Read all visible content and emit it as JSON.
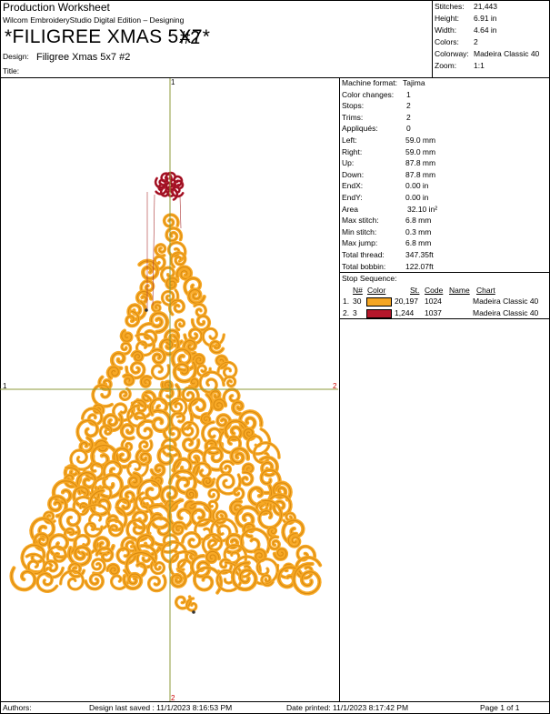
{
  "header": {
    "title": "Production Worksheet",
    "software": "Wilcom EmbroideryStudio Digital Edition – Designing",
    "design_big_name": "*FILIGREE XMAS 5X7*",
    "design_big_overlay": "#2",
    "design_label": "Design:",
    "design_value": "Filigree Xmas 5x7 #2",
    "title_label": "Title:"
  },
  "summary": [
    {
      "label": "Stitches:",
      "value": "21,443"
    },
    {
      "label": "Height:",
      "value": "6.91 in"
    },
    {
      "label": "Width:",
      "value": "4.64 in"
    },
    {
      "label": "Colors:",
      "value": "2"
    },
    {
      "label": "Colorway:",
      "value": "Madeira Classic 40"
    },
    {
      "label": "Zoom:",
      "value": "1:1"
    }
  ],
  "details": [
    {
      "label": "Machine format:",
      "value": "Tajima"
    },
    {
      "label": "Color changes:",
      "value": "1"
    },
    {
      "label": "Stops:",
      "value": "2"
    },
    {
      "label": "Trims:",
      "value": "2"
    },
    {
      "label": "Appliqués:",
      "value": "0"
    },
    {
      "label": "Left:",
      "value": "59.0 mm"
    },
    {
      "label": "Right:",
      "value": "59.0 mm"
    },
    {
      "label": "Up:",
      "value": "87.8 mm"
    },
    {
      "label": "Down:",
      "value": "87.8 mm"
    },
    {
      "label": "EndX:",
      "value": "0.00 in"
    },
    {
      "label": "EndY:",
      "value": "0.00 in"
    },
    {
      "label": "Area",
      "value": "32.10 in²"
    },
    {
      "label": "Max stitch:",
      "value": "6.8 mm"
    },
    {
      "label": "Min stitch:",
      "value": "0.3 mm"
    },
    {
      "label": "Max jump:",
      "value": "6.8 mm"
    },
    {
      "label": "Total thread:",
      "value": "347.35ft"
    },
    {
      "label": "Total bobbin:",
      "value": "122.07ft"
    }
  ],
  "stop_sequence": {
    "title": "Stop Sequence:",
    "headers": {
      "n": "N#",
      "color": "Color",
      "st": "St.",
      "code": "Code",
      "name": "Name",
      "chart": "Chart"
    },
    "rows": [
      {
        "idx": "1.",
        "n": "30",
        "color": "#F5A623",
        "st": "20,197",
        "code": "1024",
        "name": "",
        "chart": "Madeira Classic 40"
      },
      {
        "idx": "2.",
        "n": "3",
        "color": "#B5172B",
        "st": "1,244",
        "code": "1037",
        "name": "",
        "chart": "Madeira Classic 40"
      }
    ]
  },
  "guides": {
    "v_top": "1",
    "v_bottom": "2",
    "h_left": "1",
    "h_right": "2"
  },
  "colors": {
    "gold": "#F7A825",
    "gold_dark": "#D98A10",
    "red": "#B5172B",
    "guide": "#8C9A3A"
  },
  "footer": {
    "authors_label": "Authors:",
    "saved": "Design last saved : 11/1/2023 8:16:53 PM",
    "printed": "Date printed: 11/1/2023 8:17:42 PM",
    "page": "Page 1 of 1"
  }
}
